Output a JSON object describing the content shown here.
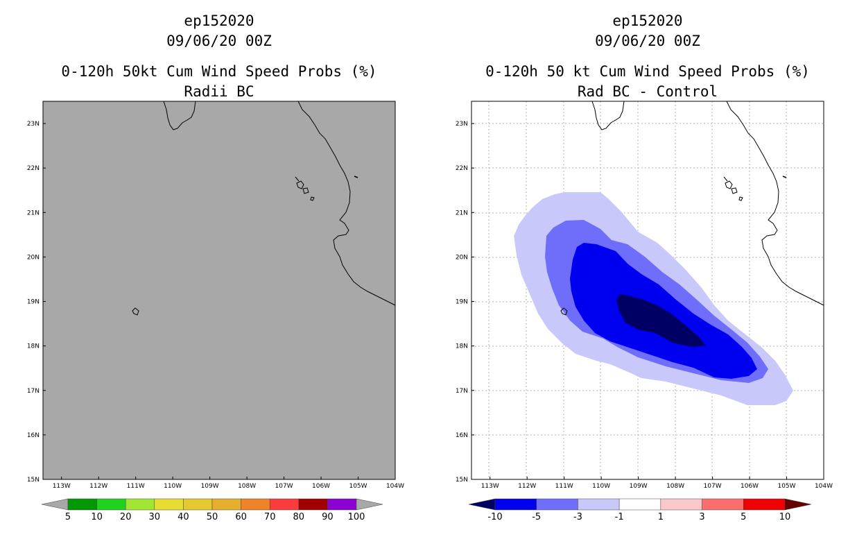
{
  "left_panel": {
    "storm_id": "ep152020",
    "datetime": "09/06/20 00Z",
    "title": "0-120h 50kt Cum Wind Speed Probs (%)",
    "subtitle": "Radii BC",
    "background_color": "#a8a8a8",
    "colorbar": {
      "labels": [
        "5",
        "10",
        "20",
        "30",
        "40",
        "50",
        "60",
        "70",
        "80",
        "90",
        "100"
      ],
      "colors": [
        "#a8a8a8",
        "#009a00",
        "#1ed21e",
        "#a0e632",
        "#e6dc32",
        "#e6c832",
        "#e6af2d",
        "#f08228",
        "#fa3c3c",
        "#a00000",
        "#8c00d2",
        "#a8a8a8"
      ]
    }
  },
  "right_panel": {
    "storm_id": "ep152020",
    "datetime": "09/06/20 00Z",
    "title": "0-120h 50 kt Cum Wind Speed Probs (%)",
    "subtitle": "Rad BC - Control",
    "colorbar": {
      "labels": [
        "-10",
        "-5",
        "-3",
        "-1",
        "1",
        "3",
        "5",
        "10"
      ],
      "colors": [
        "#000064",
        "#0000f0",
        "#6e6efa",
        "#c8c8fa",
        "#ffffff",
        "#fac8c8",
        "#fa6e6e",
        "#f00000",
        "#640000"
      ]
    }
  },
  "map": {
    "lat_labels": [
      "15N",
      "16N",
      "17N",
      "18N",
      "19N",
      "20N",
      "21N",
      "22N",
      "23N"
    ],
    "lon_labels": [
      "113W",
      "112W",
      "111W",
      "110W",
      "109W",
      "108W",
      "107W",
      "106W",
      "105W",
      "104W"
    ],
    "lon_min": -113.5,
    "lon_max": -104,
    "lat_min": 15,
    "lat_max": 23.5
  },
  "contours": {
    "levels": [
      "-1",
      "-3",
      "-5",
      "-10"
    ],
    "colors": [
      "#c8c8fa",
      "#6e6efa",
      "#0000f0",
      "#000064"
    ]
  }
}
